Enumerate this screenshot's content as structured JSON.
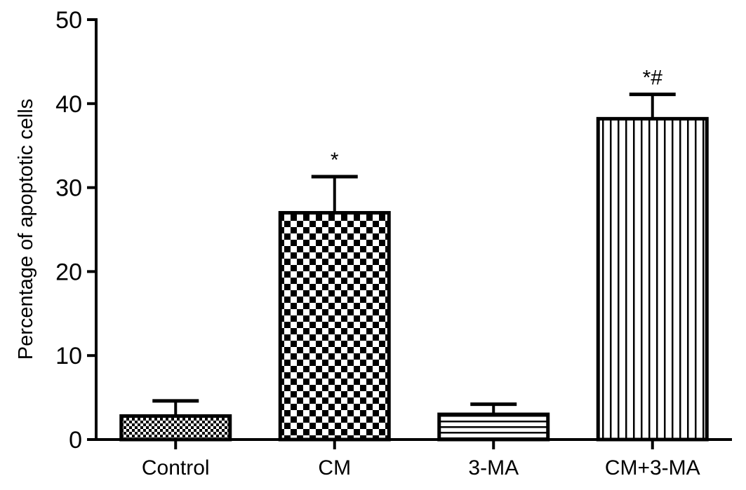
{
  "chart_data": {
    "type": "bar",
    "title": "",
    "xlabel": "",
    "ylabel": "Percentage of apoptotic cells",
    "ylim": [
      0,
      50
    ],
    "yticks": [
      0,
      10,
      20,
      30,
      40,
      50
    ],
    "grid": false,
    "legend": "none",
    "categories": [
      "Control",
      "CM",
      "3-MA",
      "CM+3-MA"
    ],
    "values": [
      2.8,
      27.0,
      3.0,
      38.2
    ],
    "errors": [
      1.8,
      4.3,
      1.2,
      2.9
    ],
    "significance": [
      "",
      "*",
      "",
      "*#"
    ],
    "patterns": [
      "fine-checker",
      "checker",
      "horizontal-lines",
      "vertical-lines"
    ],
    "colors": {
      "bar_stroke": "#000000",
      "pattern_ink": "#000000",
      "background": "#ffffff"
    }
  }
}
